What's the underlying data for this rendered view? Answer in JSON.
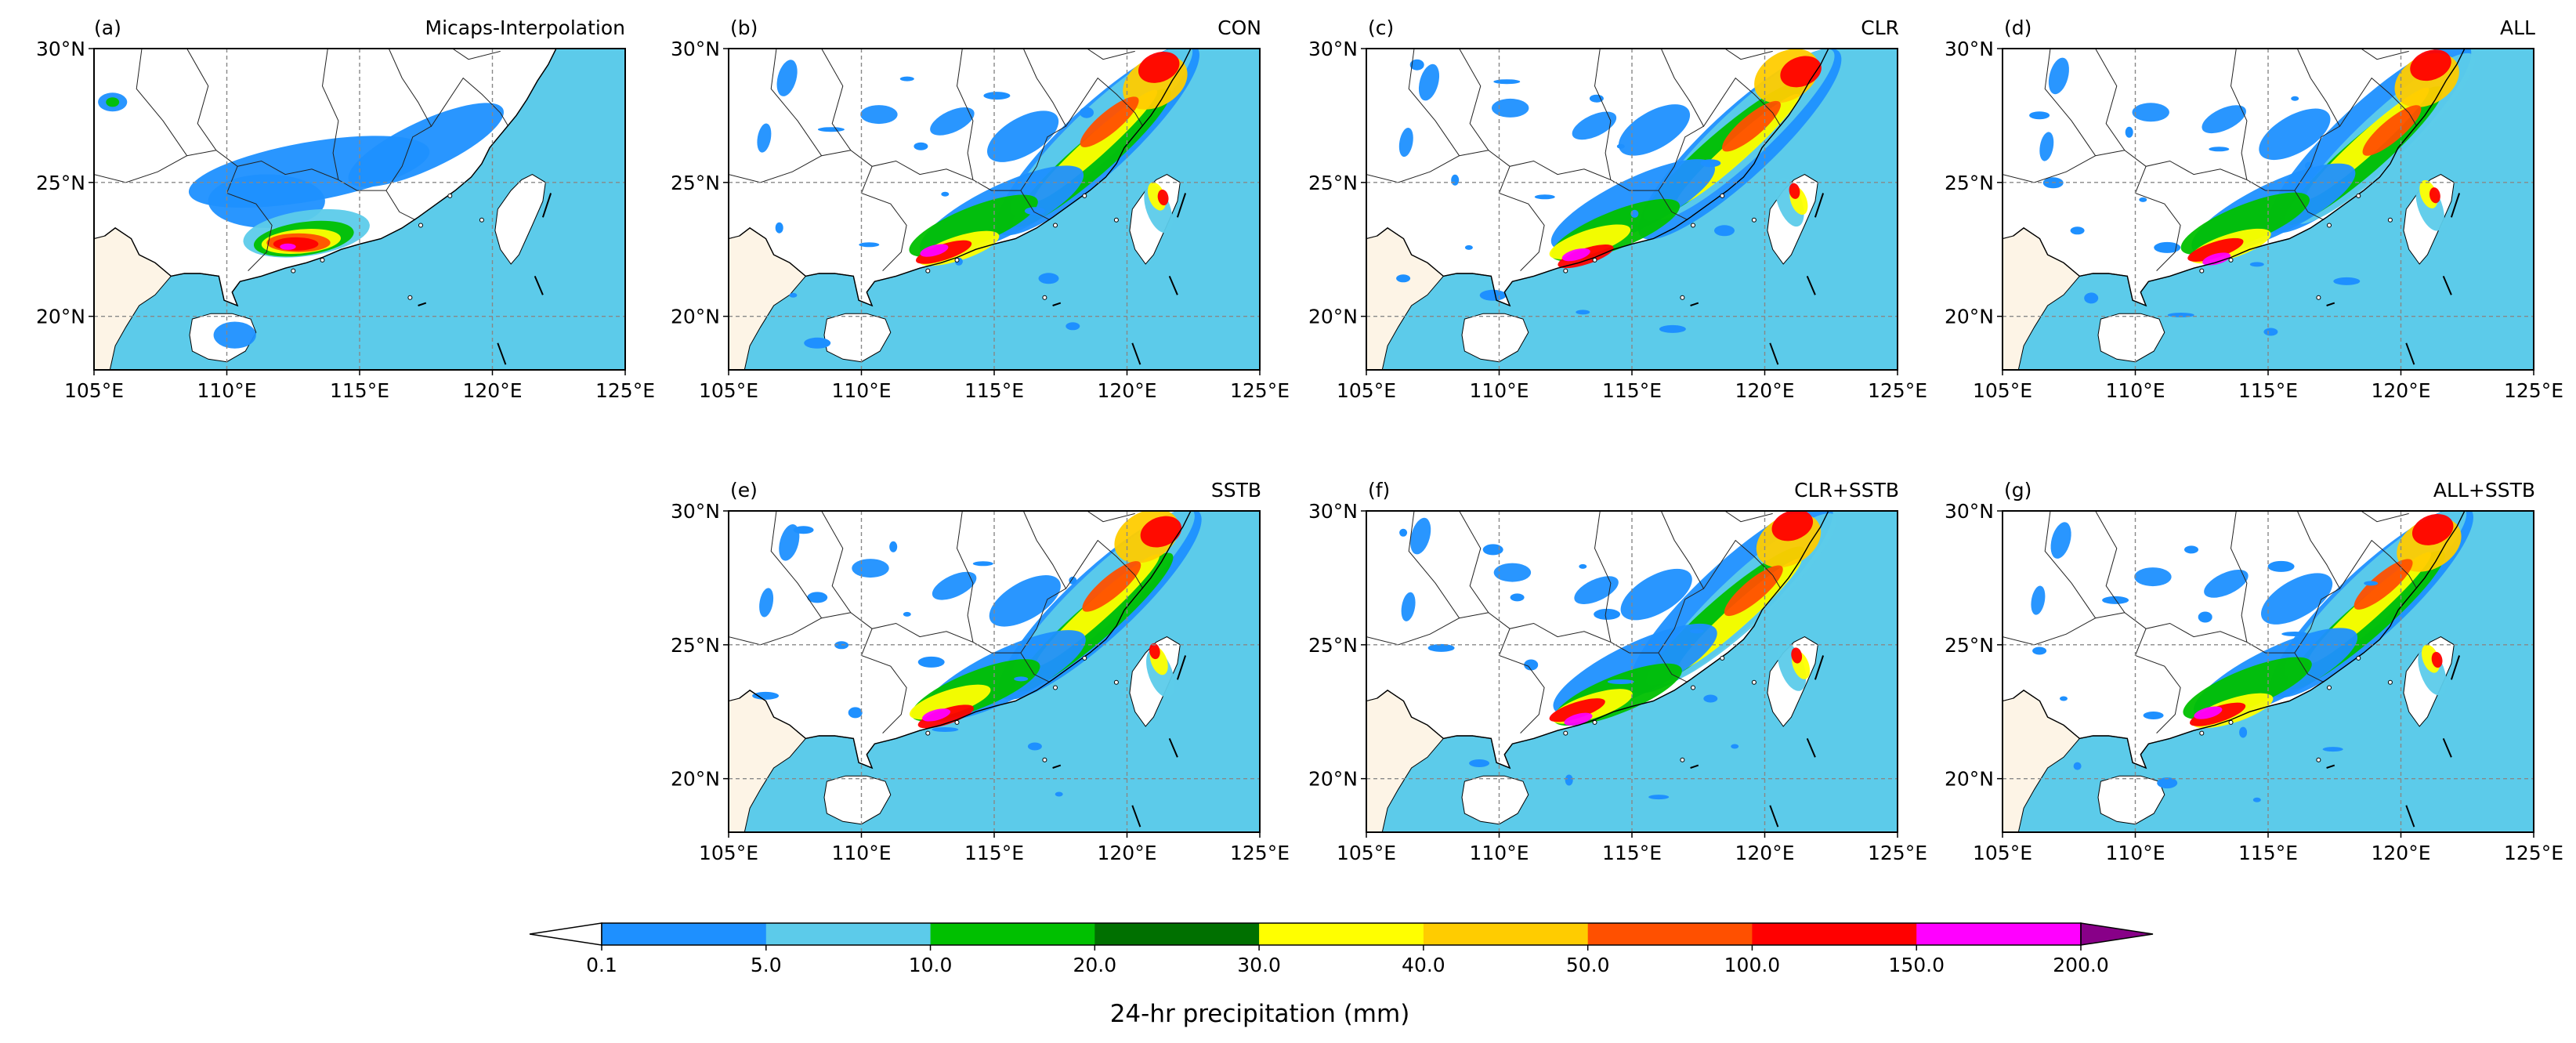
{
  "panels": [
    {
      "id": "(a)",
      "title": "Micaps-Interpolation",
      "type": "obs"
    },
    {
      "id": "(b)",
      "title": "CON",
      "type": "model"
    },
    {
      "id": "(c)",
      "title": "CLR",
      "type": "model"
    },
    {
      "id": "(d)",
      "title": "ALL",
      "type": "model"
    },
    {
      "id": "(e)",
      "title": "SSTB",
      "type": "model"
    },
    {
      "id": "(f)",
      "title": "CLR+SSTB",
      "type": "model"
    },
    {
      "id": "(g)",
      "title": "ALL+SSTB",
      "type": "model"
    }
  ],
  "map": {
    "lon_ticks": [
      "105°E",
      "110°E",
      "115°E",
      "120°E",
      "125°E"
    ],
    "lat_ticks": [
      "20°N",
      "25°N",
      "30°N"
    ],
    "lon_range": [
      105,
      125
    ],
    "lat_range": [
      18,
      30
    ],
    "land_color": "#ffffff",
    "foreign_land_color": "#fdf4e6",
    "ocean_color": "#5ccbea",
    "gridlines": "dashed"
  },
  "colorbar": {
    "label": "24-hr precipitation (mm)",
    "ticks": [
      "0.1",
      "5.0",
      "10.0",
      "20.0",
      "30.0",
      "40.0",
      "50.0",
      "100.0",
      "150.0",
      "200.0"
    ],
    "colors": [
      "#1e90ff",
      "#5ccbea",
      "#00c000",
      "#007000",
      "#ffff00",
      "#ffcc00",
      "#ff5000",
      "#ff0000",
      "#ff00ff",
      "#880088"
    ],
    "under_color": "#ffffff",
    "extend": "both"
  }
}
